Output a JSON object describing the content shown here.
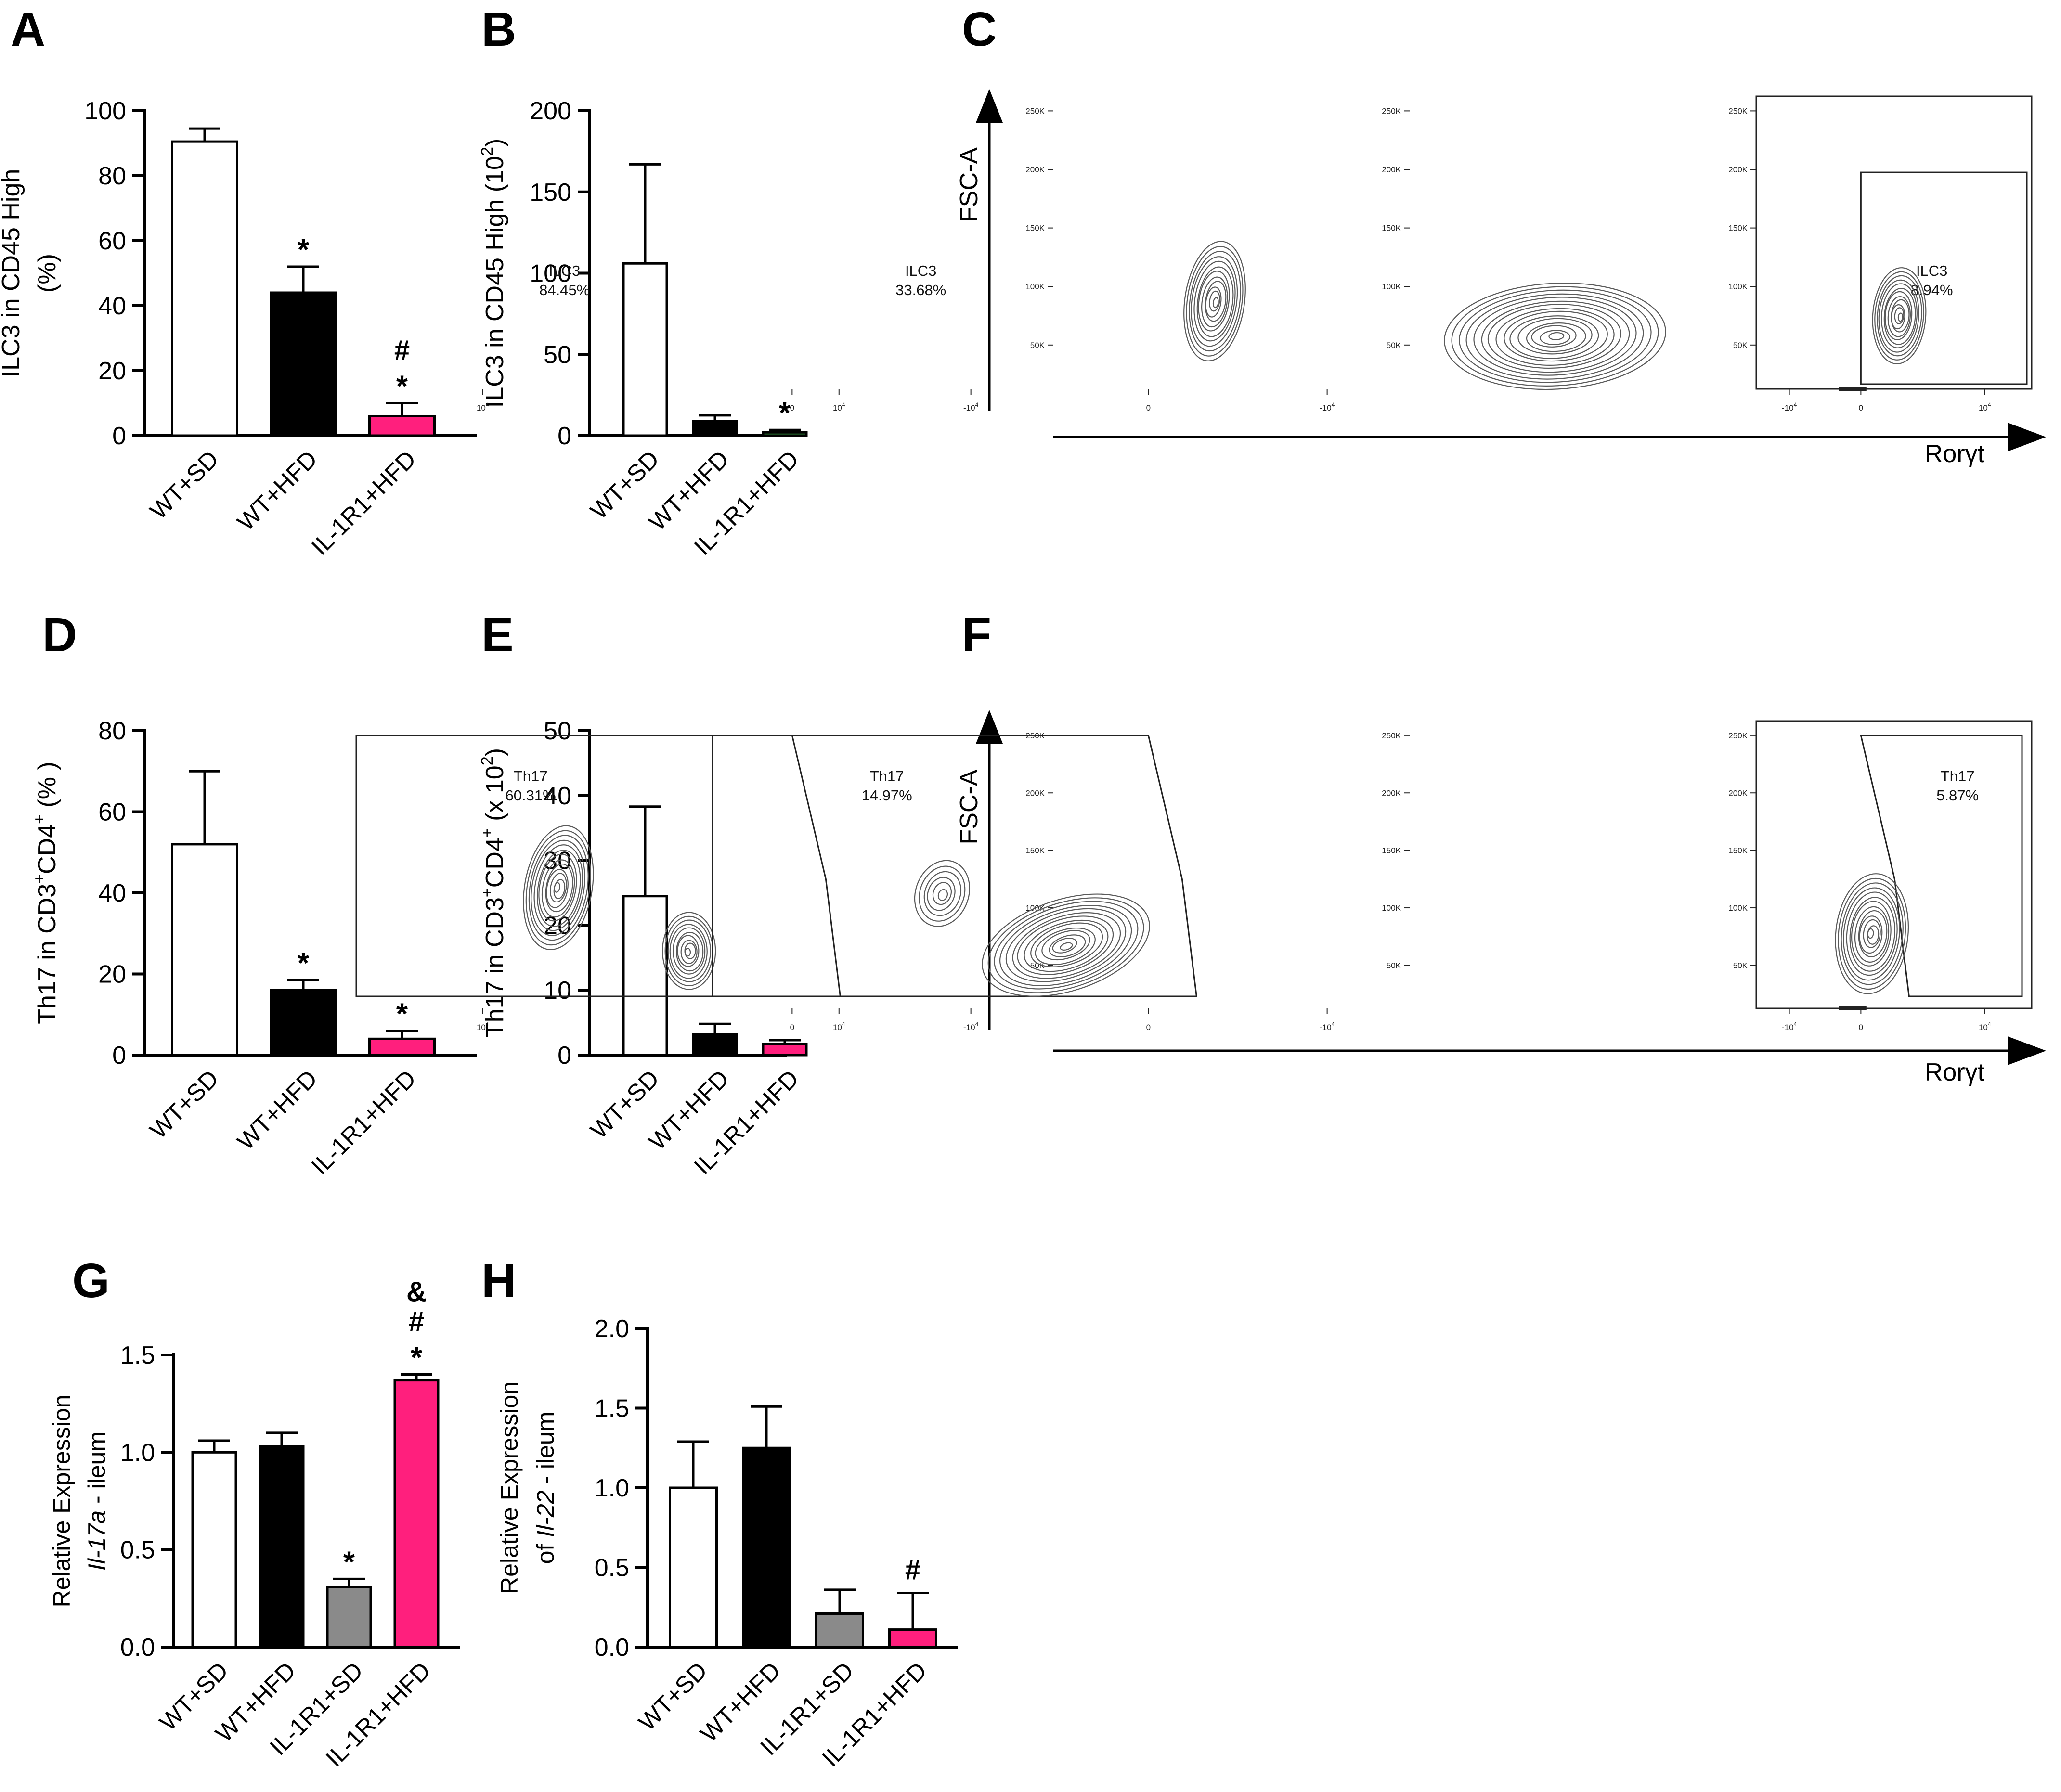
{
  "colors": {
    "white": "#ffffff",
    "black": "#000000",
    "gray": "#8a8a8a",
    "pink": "#ff1f7d",
    "green": "#2e8b3a",
    "contour": "#5a5a5a"
  },
  "chart_data": [
    {
      "id": "A",
      "type": "bar",
      "panel_label": "A",
      "ylabel_lines": [
        "ILC3 in CD45 High",
        "(%)"
      ],
      "categories": [
        "WT+SD",
        "WT+HFD",
        "IL-1R1+HFD"
      ],
      "values": [
        90.5,
        44,
        6
      ],
      "errors": [
        4,
        8,
        4
      ],
      "colors": [
        "#ffffff",
        "#000000",
        "#ff1f7d"
      ],
      "annotations": [
        [],
        [
          "*"
        ],
        [
          "*",
          "#"
        ]
      ],
      "ylim": [
        0,
        100
      ],
      "yticks": [
        0,
        20,
        40,
        60,
        80,
        100
      ],
      "ytick_labels": [
        "0",
        "20",
        "40",
        "60",
        "80",
        "100"
      ]
    },
    {
      "id": "B",
      "type": "bar",
      "panel_label": "B",
      "ylabel_main": "ILC3 in CD45 High (10",
      "ylabel_sup": "2",
      "ylabel_end": ")",
      "categories": [
        "WT+SD",
        "WT+HFD",
        "IL-1R1+HFD"
      ],
      "values": [
        106,
        9,
        2
      ],
      "errors": [
        61,
        3.5,
        1.5
      ],
      "colors": [
        "#ffffff",
        "#000000",
        "#2e8b3a"
      ],
      "annotations": [
        [],
        [],
        [
          "*"
        ]
      ],
      "ylim": [
        0,
        200
      ],
      "yticks": [
        0,
        50,
        100,
        150,
        200
      ],
      "ytick_labels": [
        "0",
        "50",
        "100",
        "150",
        "200"
      ]
    },
    {
      "id": "D",
      "type": "bar",
      "panel_label": "D",
      "ylabel_parts": [
        "Th17  in CD3",
        "+",
        "CD4",
        "+",
        " (% )"
      ],
      "categories": [
        "WT+SD",
        "WT+HFD",
        "IL-1R1+HFD"
      ],
      "values": [
        52,
        16,
        4
      ],
      "errors": [
        18,
        2.5,
        2
      ],
      "colors": [
        "#ffffff",
        "#000000",
        "#ff1f7d"
      ],
      "annotations": [
        [],
        [
          "*"
        ],
        [
          "*"
        ]
      ],
      "ylim": [
        0,
        80
      ],
      "yticks": [
        0,
        20,
        40,
        60,
        80
      ],
      "ytick_labels": [
        "0",
        "20",
        "40",
        "60",
        "80"
      ]
    },
    {
      "id": "E",
      "type": "bar",
      "panel_label": "E",
      "ylabel_parts": [
        "Th17  in CD3",
        "+",
        "CD4",
        "+",
        " (x 10",
        "2",
        ")"
      ],
      "categories": [
        "WT+SD",
        "WT+HFD",
        "IL-1R1+HFD"
      ],
      "values": [
        24.5,
        3.2,
        1.7
      ],
      "errors": [
        13.8,
        1.6,
        0.6
      ],
      "colors": [
        "#ffffff",
        "#000000",
        "#ff1f7d"
      ],
      "annotations": [
        [],
        [],
        []
      ],
      "ylim": [
        0,
        50
      ],
      "yticks": [
        0,
        10,
        20,
        30,
        40,
        50
      ],
      "ytick_labels": [
        "0",
        "10",
        "20",
        "30",
        "40",
        "50"
      ]
    },
    {
      "id": "G",
      "type": "bar",
      "panel_label": "G",
      "ylabel_line1": "Relative Expression",
      "ylabel_line2_gene": "Il-17a",
      "ylabel_line2_rest": " - ileum",
      "categories": [
        "WT+SD",
        "WT+HFD",
        "IL-1R1+SD",
        "IL-1R1+HFD"
      ],
      "values": [
        1.0,
        1.03,
        0.31,
        1.37
      ],
      "errors": [
        0.06,
        0.07,
        0.04,
        0.03
      ],
      "colors": [
        "#ffffff",
        "#000000",
        "#8a8a8a",
        "#ff1f7d"
      ],
      "annotations": [
        [],
        [],
        [
          "*"
        ],
        [
          "*",
          "#",
          "&"
        ]
      ],
      "ylim": [
        0,
        1.5
      ],
      "yticks": [
        0,
        0.5,
        1.0,
        1.5
      ],
      "ytick_labels": [
        "0.0",
        "0.5",
        "1.0",
        "1.5"
      ]
    },
    {
      "id": "H",
      "type": "bar",
      "panel_label": "H",
      "ylabel_line1": "Relative Expression",
      "ylabel_line2_pre": "of ",
      "ylabel_line2_gene": "Il-22",
      "ylabel_line2_rest": " - ileum",
      "categories": [
        "WT+SD",
        "WT+HFD",
        "IL-1R1+SD",
        "IL-1R1+HFD"
      ],
      "values": [
        1.0,
        1.25,
        0.21,
        0.11
      ],
      "errors": [
        0.29,
        0.26,
        0.15,
        0.23
      ],
      "colors": [
        "#ffffff",
        "#000000",
        "#8a8a8a",
        "#ff1f7d"
      ],
      "annotations": [
        [],
        [],
        [],
        [
          "#"
        ]
      ],
      "ylim": [
        0,
        2.0
      ],
      "yticks": [
        0,
        0.5,
        1.0,
        1.5,
        2.0
      ],
      "ytick_labels": [
        "0.0",
        "0.5",
        "1.0",
        "1.5",
        "2.0"
      ]
    }
  ],
  "flow_panels": [
    {
      "panel_label": "C",
      "y_axis_label": "FSC-A",
      "x_axis_label": "Rorγt",
      "y_ticks": [
        "250K",
        "200K",
        "150K",
        "100K",
        "50K"
      ],
      "x_ticks": [
        "-10",
        "0",
        "10"
      ],
      "tick_exp": "4",
      "gates": [
        {
          "name": "ILC3",
          "percent": "84.45%"
        },
        {
          "name": "ILC3",
          "percent": "33.68%"
        },
        {
          "name": "ILC3",
          "percent": "8.94%"
        }
      ]
    },
    {
      "panel_label": "F",
      "y_axis_label": "FSC-A",
      "x_axis_label": "Rorγt",
      "y_ticks": [
        "250K",
        "200K",
        "150K",
        "100K",
        "50K"
      ],
      "x_ticks": [
        "-10",
        "0",
        "10"
      ],
      "tick_exp": "4",
      "gates": [
        {
          "name": "Th17",
          "percent": "60.31%"
        },
        {
          "name": "Th17",
          "percent": "14.97%"
        },
        {
          "name": "Th17",
          "percent": "5.87%"
        }
      ]
    }
  ]
}
